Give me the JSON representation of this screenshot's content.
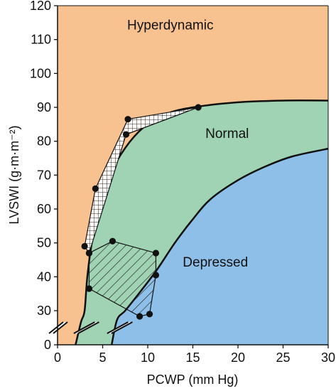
{
  "chart_data": {
    "type": "area",
    "xlabel": "PCWP (mm Hg)",
    "ylabel": "LVSWI (g·m·m⁻²)",
    "xlim": [
      0,
      30
    ],
    "ylim": [
      0,
      120
    ],
    "x_axis_break": true,
    "y_axis_break": true,
    "xticks": [
      0,
      5,
      10,
      15,
      20,
      25,
      30
    ],
    "xtick_labels": [
      "0",
      "5",
      "10",
      "15",
      "20",
      "25",
      "30"
    ],
    "yticks": [
      0,
      30,
      40,
      50,
      60,
      70,
      80,
      90,
      100,
      110,
      120
    ],
    "ytick_labels": [
      "0",
      "30",
      "40",
      "50",
      "60",
      "70",
      "80",
      "90",
      "100",
      "110",
      "120"
    ],
    "regions": [
      {
        "name": "Hyperdynamic",
        "color": "#f7c290",
        "label_at": [
          12.5,
          113
        ]
      },
      {
        "name": "Normal",
        "color": "#9fd3b4",
        "label_at": [
          18.8,
          81
        ]
      },
      {
        "name": "Depressed",
        "color": "#8dbfe8",
        "label_at": [
          17.5,
          43
        ]
      }
    ],
    "boundaries": [
      {
        "name": "hyperdynamic-normal",
        "points": [
          [
            3.0,
            30
          ],
          [
            3.3,
            40
          ],
          [
            3.8,
            50
          ],
          [
            4.6,
            60
          ],
          [
            5.8,
            70
          ],
          [
            7.5,
            78
          ],
          [
            9.5,
            84
          ],
          [
            12,
            88
          ],
          [
            15,
            90
          ],
          [
            20,
            91.5
          ],
          [
            25,
            92
          ],
          [
            30,
            92
          ]
        ]
      },
      {
        "name": "normal-depressed",
        "points": [
          [
            7.5,
            30
          ],
          [
            9,
            35
          ],
          [
            11,
            42
          ],
          [
            13,
            50
          ],
          [
            15,
            57
          ],
          [
            17,
            63
          ],
          [
            20,
            68.5
          ],
          [
            23,
            72.5
          ],
          [
            26,
            75.5
          ],
          [
            30,
            77.8
          ]
        ]
      }
    ],
    "series": [
      {
        "points": [
          [
            3.0,
            49
          ],
          [
            3.5,
            47
          ],
          [
            4.2,
            66
          ],
          [
            7.6,
            82
          ],
          [
            7.8,
            86.5
          ],
          [
            15.6,
            90
          ]
        ],
        "polygon": [
          [
            3.0,
            49
          ],
          [
            4.2,
            66
          ],
          [
            7.8,
            86.5
          ],
          [
            15.6,
            90
          ],
          [
            7.6,
            82
          ],
          [
            3.5,
            47
          ]
        ],
        "fill_pattern": "crosshatch"
      },
      {
        "points": [
          [
            6.1,
            50.5
          ],
          [
            10.9,
            47
          ],
          [
            10.9,
            40.5
          ],
          [
            10.2,
            27
          ],
          [
            9.1,
            25
          ],
          [
            3.5,
            36.5
          ],
          [
            3.5,
            47
          ]
        ],
        "polygon": [
          [
            6.1,
            50.5
          ],
          [
            10.9,
            47
          ],
          [
            10.9,
            40.5
          ],
          [
            10.2,
            27
          ],
          [
            9.1,
            25
          ],
          [
            3.5,
            36.5
          ],
          [
            3.5,
            47
          ]
        ],
        "fill_pattern": "diagonal-hatch"
      }
    ],
    "colors": {
      "line": "#111111",
      "point": "#111111",
      "hatch": "#222222"
    }
  }
}
